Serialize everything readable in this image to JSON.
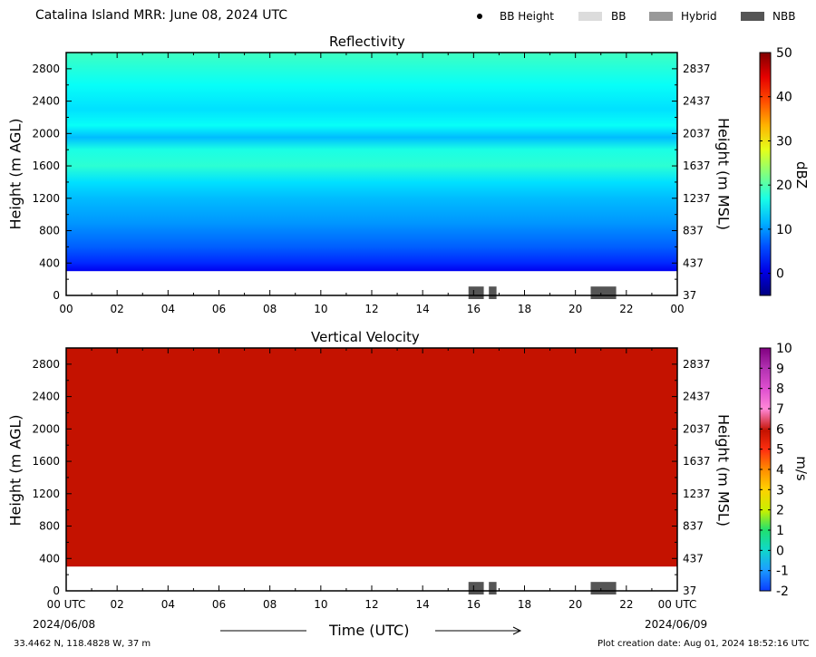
{
  "header": {
    "title": "Catalina Island MRR:  June 08, 2024 UTC",
    "legend": [
      {
        "label": "BB Height",
        "kind": "dot",
        "color": "#000000"
      },
      {
        "label": "BB",
        "kind": "swatch",
        "color": "#dcdcdc"
      },
      {
        "label": "Hybrid",
        "kind": "swatch",
        "color": "#999999"
      },
      {
        "label": "NBB",
        "kind": "swatch",
        "color": "#555555"
      }
    ]
  },
  "chart_data": [
    {
      "type": "heatmap",
      "title": "Reflectivity",
      "ylabel": "Height (m AGL)",
      "ylabel_right": "Height (m MSL)",
      "x_ticks": [
        "00",
        "02",
        "04",
        "06",
        "08",
        "10",
        "12",
        "14",
        "16",
        "18",
        "20",
        "22",
        "00"
      ],
      "xlim": [
        0,
        24
      ],
      "y_ticks": [
        0,
        400,
        800,
        1200,
        1600,
        2000,
        2400,
        2800
      ],
      "y_ticks_right": [
        37,
        437,
        837,
        1237,
        1637,
        2037,
        2437,
        2837
      ],
      "ylim": [
        0,
        3000
      ],
      "data_top_m": 3000,
      "data_bottom_m": 300,
      "reflectivity_profile_dbz": [
        {
          "height_m": 300,
          "dbz": 1
        },
        {
          "height_m": 400,
          "dbz": 4
        },
        {
          "height_m": 600,
          "dbz": 7
        },
        {
          "height_m": 900,
          "dbz": 10
        },
        {
          "height_m": 1200,
          "dbz": 12
        },
        {
          "height_m": 1400,
          "dbz": 14
        },
        {
          "height_m": 1600,
          "dbz": 18
        },
        {
          "height_m": 1800,
          "dbz": 17
        },
        {
          "height_m": 1950,
          "dbz": 12
        },
        {
          "height_m": 2100,
          "dbz": 16
        },
        {
          "height_m": 2300,
          "dbz": 14
        },
        {
          "height_m": 2600,
          "dbz": 16
        },
        {
          "height_m": 3000,
          "dbz": 19
        }
      ],
      "bright_band_type_segments": [
        {
          "type": "NBB",
          "start_utc": 15.8,
          "end_utc": 16.4
        },
        {
          "type": "NBB",
          "start_utc": 16.6,
          "end_utc": 16.9
        },
        {
          "type": "NBB",
          "start_utc": 20.6,
          "end_utc": 21.6
        }
      ],
      "colorbar": {
        "label": "dBZ",
        "range": [
          -5,
          50
        ],
        "ticks": [
          0,
          10,
          20,
          30,
          40,
          50
        ],
        "colormap": "jet"
      }
    },
    {
      "type": "heatmap",
      "title": "Vertical Velocity",
      "ylabel": "Height (m AGL)",
      "ylabel_right": "Height (m MSL)",
      "xlabel": "Time (UTC)",
      "x_ticks": [
        "00 UTC",
        "02",
        "04",
        "06",
        "08",
        "10",
        "12",
        "14",
        "16",
        "18",
        "20",
        "22",
        "00 UTC"
      ],
      "x_date_start": "2024/06/08",
      "x_date_end": "2024/06/09",
      "xlim": [
        0,
        24
      ],
      "y_ticks": [
        0,
        400,
        800,
        1200,
        1600,
        2000,
        2400,
        2800
      ],
      "y_ticks_right": [
        37,
        437,
        837,
        1237,
        1637,
        2037,
        2437,
        2837
      ],
      "ylim": [
        0,
        3000
      ],
      "data_top_m": 3000,
      "data_bottom_m": 300,
      "velocity_fill_ms": 6,
      "fill_color": "#c41200",
      "bright_band_type_segments": [
        {
          "type": "NBB",
          "start_utc": 15.8,
          "end_utc": 16.4
        },
        {
          "type": "NBB",
          "start_utc": 16.6,
          "end_utc": 16.9
        },
        {
          "type": "NBB",
          "start_utc": 20.6,
          "end_utc": 21.6
        }
      ],
      "colorbar": {
        "label": "m/s",
        "range": [
          -2,
          10
        ],
        "ticks": [
          -2,
          -1,
          0,
          1,
          2,
          3,
          4,
          5,
          6,
          7,
          8,
          9,
          10
        ]
      }
    }
  ],
  "footer": {
    "location": "33.4462 N, 118.4828 W, 37 m",
    "creation": "Plot creation date: Aug 01, 2024 18:52:16 UTC"
  }
}
